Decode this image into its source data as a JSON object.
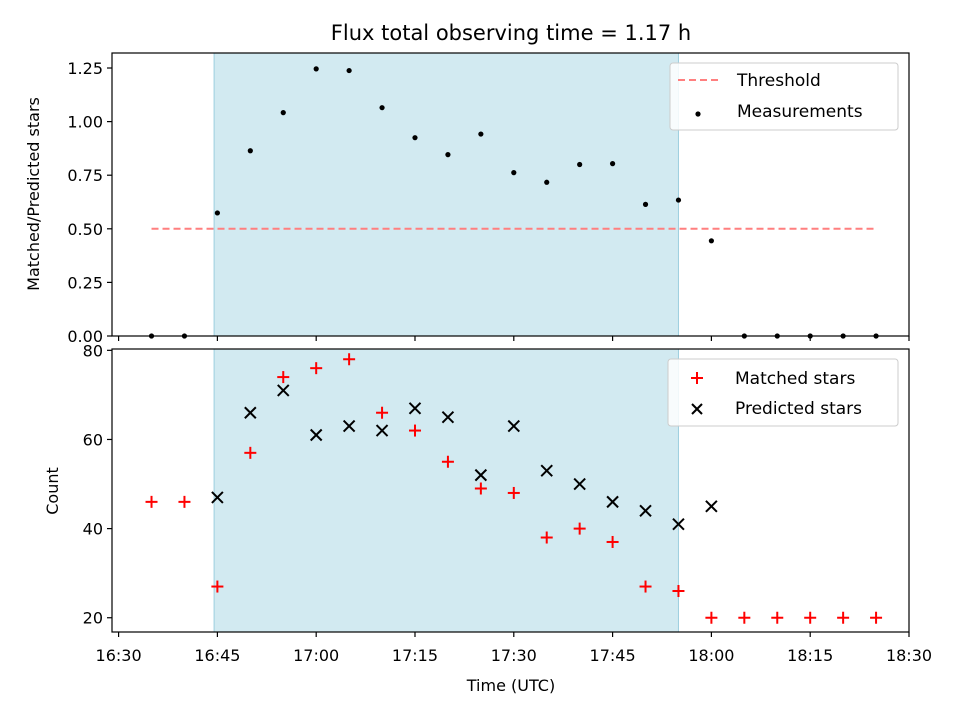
{
  "chart_data": {
    "type": "scatter",
    "title": "Flux total observing time = 1.17 h",
    "xlabel": "Time (UTC)",
    "x_tick_labels": [
      "16:30",
      "16:45",
      "17:00",
      "17:15",
      "17:30",
      "17:45",
      "18:00",
      "18:15",
      "18:30"
    ],
    "x_tick_minutes": [
      990,
      1005,
      1020,
      1035,
      1050,
      1065,
      1080,
      1095,
      1110
    ],
    "xlim": [
      "16:29",
      "18:30"
    ],
    "shaded_region": {
      "start": "16:44.5",
      "end": "17:55",
      "color": "#add8e6"
    },
    "panels": [
      {
        "ylabel": "Matched/Predicted stars",
        "ylim": [
          0,
          1.32
        ],
        "y_ticks": [
          "0.00",
          "0.25",
          "0.50",
          "0.75",
          "1.00",
          "1.25"
        ],
        "legend": {
          "position": "top-right",
          "entries": [
            "Threshold",
            "Measurements"
          ]
        },
        "series": [
          {
            "name": "Threshold",
            "kind": "dashed-line",
            "color": "#ff7f7f",
            "x": [
              "16:35",
              "18:25"
            ],
            "y": [
              0.5,
              0.5
            ]
          },
          {
            "name": "Measurements",
            "kind": "dot",
            "color": "#000000",
            "x": [
              "16:35",
              "16:40",
              "16:45",
              "16:50",
              "16:55",
              "17:00",
              "17:05",
              "17:10",
              "17:15",
              "17:20",
              "17:25",
              "17:30",
              "17:35",
              "17:40",
              "17:45",
              "17:50",
              "17:55",
              "18:00",
              "18:05",
              "18:10",
              "18:15",
              "18:20",
              "18:25"
            ],
            "y": [
              0.0,
              0.0,
              0.574,
              0.864,
              1.042,
              1.246,
              1.238,
              1.065,
              0.925,
              0.846,
              0.942,
              0.762,
              0.717,
              0.8,
              0.804,
              0.614,
              0.634,
              0.444,
              0.0,
              0.0,
              0.0,
              0.0,
              0.0
            ]
          }
        ]
      },
      {
        "ylabel": "Count",
        "ylim": [
          16.8,
          80.3
        ],
        "y_ticks": [
          "20",
          "40",
          "60",
          "80"
        ],
        "legend": {
          "position": "top-right",
          "entries": [
            "Matched stars",
            "Predicted stars"
          ]
        },
        "series": [
          {
            "name": "Matched stars",
            "kind": "plus",
            "color": "#ff0000",
            "x": [
              "16:35",
              "16:40",
              "16:45",
              "16:50",
              "16:55",
              "17:00",
              "17:05",
              "17:10",
              "17:15",
              "17:20",
              "17:25",
              "17:30",
              "17:35",
              "17:40",
              "17:45",
              "17:50",
              "17:55",
              "18:00",
              "18:05",
              "18:10",
              "18:15",
              "18:20",
              "18:25"
            ],
            "y": [
              46,
              46,
              27,
              57,
              74,
              76,
              78,
              66,
              62,
              55,
              49,
              48,
              38,
              40,
              37,
              27,
              26,
              20,
              20,
              20,
              20,
              20,
              20
            ]
          },
          {
            "name": "Predicted stars",
            "kind": "x",
            "color": "#000000",
            "x": [
              "16:45",
              "16:50",
              "16:55",
              "17:00",
              "17:05",
              "17:10",
              "17:15",
              "17:20",
              "17:25",
              "17:30",
              "17:35",
              "17:40",
              "17:45",
              "17:50",
              "17:55",
              "18:00"
            ],
            "y": [
              47,
              66,
              71,
              61,
              63,
              62,
              67,
              65,
              52,
              63,
              53,
              50,
              46,
              44,
              41,
              45
            ]
          }
        ]
      }
    ]
  }
}
